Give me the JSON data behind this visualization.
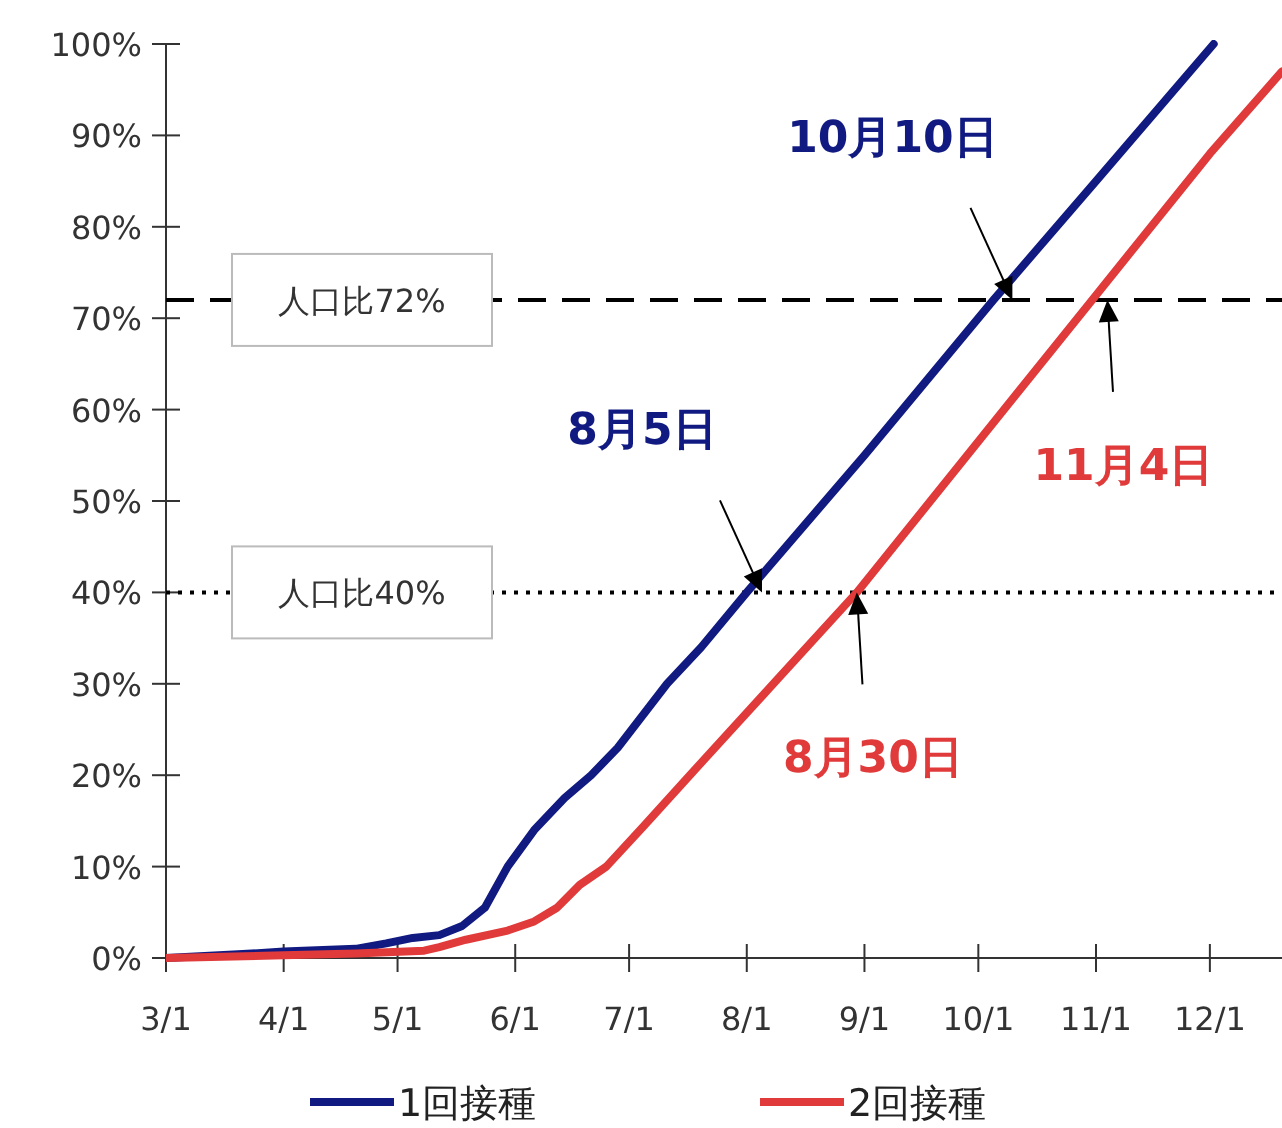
{
  "chart_data": {
    "type": "line",
    "xlim": [
      "--03-01",
      "--12-20"
    ],
    "xticks": [
      {
        "value": "--03-01",
        "label": "3/1"
      },
      {
        "value": "--04-01",
        "label": "4/1"
      },
      {
        "value": "--05-01",
        "label": "5/1"
      },
      {
        "value": "--06-01",
        "label": "6/1"
      },
      {
        "value": "--07-01",
        "label": "7/1"
      },
      {
        "value": "--08-01",
        "label": "8/1"
      },
      {
        "value": "--09-01",
        "label": "9/1"
      },
      {
        "value": "--10-01",
        "label": "10/1"
      },
      {
        "value": "--11-01",
        "label": "11/1"
      },
      {
        "value": "--12-01",
        "label": "12/1"
      }
    ],
    "ylim": [
      0,
      100
    ],
    "yticks": [
      {
        "value": 0,
        "label": "0%"
      },
      {
        "value": 10,
        "label": "10%"
      },
      {
        "value": 20,
        "label": "20%"
      },
      {
        "value": 30,
        "label": "30%"
      },
      {
        "value": 40,
        "label": "40%"
      },
      {
        "value": 50,
        "label": "50%"
      },
      {
        "value": 60,
        "label": "60%"
      },
      {
        "value": 70,
        "label": "70%"
      },
      {
        "value": 80,
        "label": "80%"
      },
      {
        "value": 90,
        "label": "90%"
      },
      {
        "value": 100,
        "label": "100%"
      }
    ],
    "series": [
      {
        "name": "1回接種",
        "color": "#101a80",
        "x": [
          "--03-01",
          "--03-20",
          "--04-01",
          "--04-20",
          "--04-28",
          "--05-05",
          "--05-12",
          "--05-18",
          "--05-24",
          "--05-30",
          "--06-06",
          "--06-14",
          "--06-21",
          "--06-28",
          "--07-11",
          "--07-20",
          "--08-01",
          "--09-01",
          "--10-05",
          "--11-01",
          "--12-02"
        ],
        "values": [
          0,
          0.4,
          0.7,
          1,
          1.6,
          2.2,
          2.5,
          3.5,
          5.5,
          10,
          14,
          17.5,
          20,
          23,
          30,
          34,
          40,
          55,
          72,
          85,
          100
        ]
      },
      {
        "name": "2回接種",
        "color": "#e03a3a",
        "x": [
          "--03-01",
          "--04-01",
          "--04-20",
          "--05-08",
          "--05-12",
          "--05-19",
          "--05-30",
          "--06-06",
          "--06-12",
          "--06-18",
          "--06-25",
          "--07-05",
          "--07-17",
          "--08-08",
          "--08-30",
          "--10-01",
          "--10-31",
          "--12-01",
          "--12-20"
        ],
        "values": [
          0,
          0.3,
          0.5,
          0.8,
          1.2,
          2,
          3,
          4,
          5.5,
          8,
          10,
          14.5,
          20,
          30,
          40,
          56.5,
          72,
          88,
          97
        ]
      }
    ],
    "ref_lines": [
      {
        "axis": "y",
        "value": 72,
        "label": "人口比72%",
        "line_style": "dashed"
      },
      {
        "axis": "y",
        "value": 40,
        "label": "人口比40%",
        "line_style": "dotted"
      }
    ],
    "annotations": [
      {
        "text": "10月10日",
        "x": "--10-10",
        "y": 72
      },
      {
        "text": "8月5日",
        "x": "--08-05",
        "y": 40
      },
      {
        "text": "11月4日",
        "x": "--11-04",
        "y": 72
      },
      {
        "text": "8月30日",
        "x": "--08-30",
        "y": 40
      }
    ],
    "legend": "bottom",
    "grid": false
  }
}
